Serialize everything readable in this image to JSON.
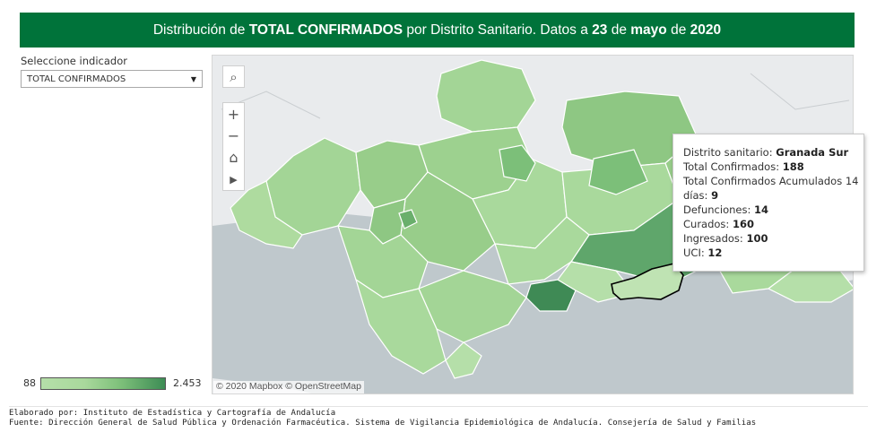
{
  "header": {
    "prefix": "Distribución de ",
    "indicator": "TOTAL CONFIRMADOS",
    "mid": " por Distrito Sanitario. Datos a ",
    "day": "23",
    "de1": " de ",
    "month": "mayo",
    "de2": " de ",
    "year": "2020"
  },
  "selector": {
    "label": "Seleccione indicador",
    "value": "TOTAL CONFIRMADOS"
  },
  "map": {
    "attribution": "© 2020 Mapbox © OpenStreetMap",
    "tools": {
      "search": "⌕",
      "zoom_in": "+",
      "zoom_out": "−",
      "home": "⌂",
      "play": "▶"
    },
    "colors": {
      "light": "#b5dfa9",
      "mid": "#98cd8a",
      "dark": "#5fa66b",
      "darkest": "#3f8a55",
      "highlight": "#bfe3b3",
      "sea": "#bfc8cc",
      "land": "#e9ebed"
    }
  },
  "tooltip": {
    "district_label": "Distrito sanitario: ",
    "district": "Granada Sur",
    "confirmed_label": "Total Confirmados: ",
    "confirmed": "188",
    "acc_label_1": "Total Confirmados Acumulados 14",
    "acc_label_2": "días: ",
    "acc": "9",
    "deaths_label": "Defunciones: ",
    "deaths": "14",
    "recovered_label": "Curados: ",
    "recovered": "160",
    "hospital_label": "Ingresados: ",
    "hospital": "100",
    "icu_label": "UCI: ",
    "icu": "12"
  },
  "legend": {
    "min": "88",
    "max": "2.453"
  },
  "footer": {
    "line1": "Elaborado por: Instituto de Estadística y Cartografía de Andalucía",
    "line2": "Fuente: Dirección General de Salud Pública y Ordenación Farmacéutica. Sistema de Vigilancia Epidemiológica de Andalucía. Consejería de Salud y Familias"
  }
}
